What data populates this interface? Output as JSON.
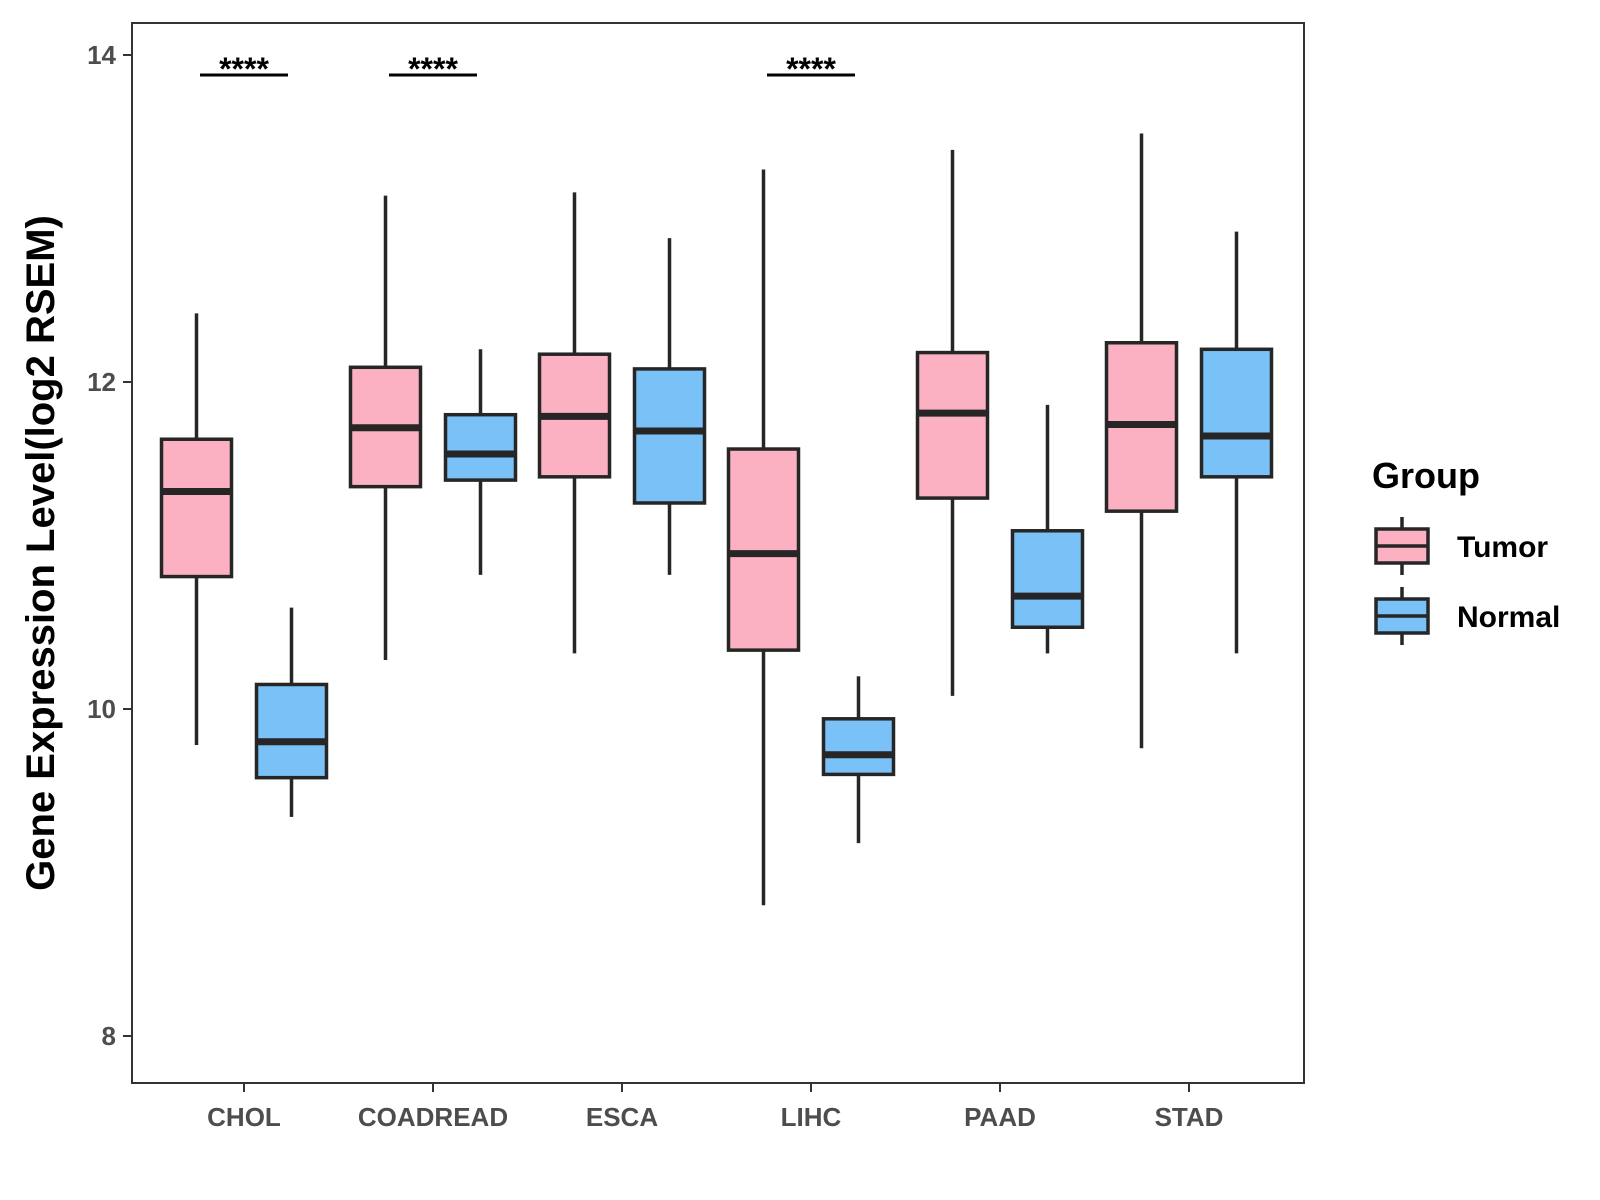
{
  "chart_data": {
    "type": "boxplot",
    "title": "",
    "xlabel": "",
    "ylabel": "Gene Expression Level(log2 RSEM)",
    "ylim": [
      7.7,
      14.2
    ],
    "yticks": [
      8,
      10,
      12,
      14
    ],
    "categories": [
      "CHOL",
      "COADREAD",
      "ESCA",
      "LIHC",
      "PAAD",
      "STAD"
    ],
    "legend": {
      "title": "Group",
      "position": "right"
    },
    "series": [
      {
        "name": "Tumor",
        "color": "#fbb1c1",
        "boxes": [
          {
            "category": "CHOL",
            "min": 9.78,
            "q1": 10.81,
            "median": 11.33,
            "q3": 11.65,
            "max": 12.42
          },
          {
            "category": "COADREAD",
            "min": 10.3,
            "q1": 11.36,
            "median": 11.72,
            "q3": 12.09,
            "max": 13.14
          },
          {
            "category": "ESCA",
            "min": 10.34,
            "q1": 11.42,
            "median": 11.79,
            "q3": 12.17,
            "max": 13.16
          },
          {
            "category": "LIHC",
            "min": 8.8,
            "q1": 10.36,
            "median": 10.95,
            "q3": 11.59,
            "max": 13.3
          },
          {
            "category": "PAAD",
            "min": 10.08,
            "q1": 11.29,
            "median": 11.81,
            "q3": 12.18,
            "max": 13.42
          },
          {
            "category": "STAD",
            "min": 9.76,
            "q1": 11.21,
            "median": 11.74,
            "q3": 12.24,
            "max": 13.52
          }
        ]
      },
      {
        "name": "Normal",
        "color": "#79c1f6",
        "boxes": [
          {
            "category": "CHOL",
            "min": 9.34,
            "q1": 9.58,
            "median": 9.8,
            "q3": 10.15,
            "max": 10.62
          },
          {
            "category": "COADREAD",
            "min": 10.82,
            "q1": 11.4,
            "median": 11.56,
            "q3": 11.8,
            "max": 12.2
          },
          {
            "category": "ESCA",
            "min": 10.82,
            "q1": 11.26,
            "median": 11.7,
            "q3": 12.08,
            "max": 12.88
          },
          {
            "category": "LIHC",
            "min": 9.18,
            "q1": 9.6,
            "median": 9.72,
            "q3": 9.94,
            "max": 10.2
          },
          {
            "category": "PAAD",
            "min": 10.34,
            "q1": 10.5,
            "median": 10.69,
            "q3": 11.09,
            "max": 11.86
          },
          {
            "category": "STAD",
            "min": 10.34,
            "q1": 11.42,
            "median": 11.67,
            "q3": 12.2,
            "max": 12.92
          }
        ]
      }
    ],
    "significance": [
      {
        "category": "CHOL",
        "label": "****"
      },
      {
        "category": "COADREAD",
        "label": "****"
      },
      {
        "category": "LIHC",
        "label": "****"
      }
    ]
  }
}
